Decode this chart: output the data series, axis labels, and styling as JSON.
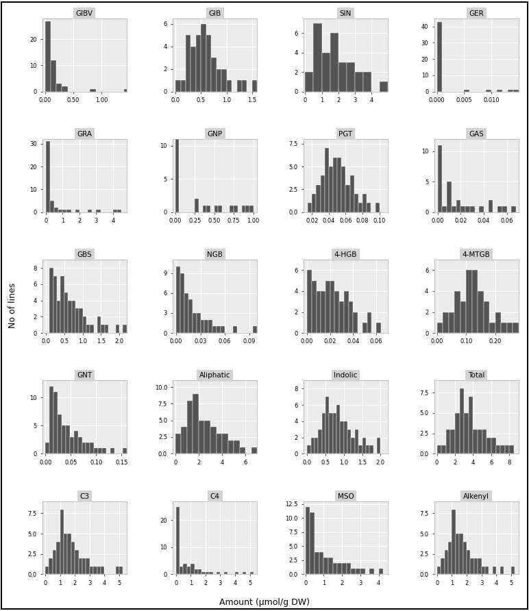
{
  "panels": [
    {
      "title": "GIBV",
      "xlim": [
        -0.05,
        1.45
      ],
      "ylim": [
        0,
        28
      ],
      "xticks": [
        0.0,
        0.5,
        1.0
      ],
      "yticks": [
        0,
        10,
        20
      ],
      "bins": [
        0.0,
        0.1,
        0.2,
        0.3,
        0.4,
        0.5,
        0.6,
        0.7,
        0.8,
        0.9,
        1.0,
        1.1,
        1.2,
        1.3,
        1.4,
        1.5
      ],
      "counts": [
        27,
        12,
        3,
        2,
        0,
        0,
        0,
        0,
        1,
        0,
        0,
        0,
        0,
        0,
        1
      ]
    },
    {
      "title": "GIB",
      "xlim": [
        -0.05,
        1.6
      ],
      "ylim": [
        0,
        6.5
      ],
      "xticks": [
        0.0,
        0.5,
        1.0,
        1.5
      ],
      "yticks": [
        0,
        2,
        4,
        6
      ],
      "bins": [
        0.0,
        0.1,
        0.2,
        0.3,
        0.4,
        0.5,
        0.6,
        0.7,
        0.8,
        0.9,
        1.0,
        1.1,
        1.2,
        1.3,
        1.4,
        1.5,
        1.6
      ],
      "counts": [
        1,
        1,
        5,
        4,
        5,
        6,
        5,
        3,
        2,
        2,
        1,
        0,
        1,
        1,
        0,
        1
      ]
    },
    {
      "title": "SIN",
      "xlim": [
        -0.1,
        5.0
      ],
      "ylim": [
        0,
        7.5
      ],
      "xticks": [
        0,
        1,
        2,
        3,
        4
      ],
      "yticks": [
        0,
        2,
        4,
        6
      ],
      "bins": [
        0.0,
        0.5,
        1.0,
        1.5,
        2.0,
        2.5,
        3.0,
        3.5,
        4.0,
        4.5,
        5.0
      ],
      "counts": [
        2,
        7,
        4,
        6,
        3,
        3,
        2,
        2,
        0,
        1
      ]
    },
    {
      "title": "GER",
      "xlim": [
        -0.0005,
        0.015
      ],
      "ylim": [
        0,
        45
      ],
      "xticks": [
        0.0,
        0.005,
        0.01
      ],
      "yticks": [
        0,
        10,
        20,
        30,
        40
      ],
      "bins": [
        0.0,
        0.001,
        0.002,
        0.003,
        0.004,
        0.005,
        0.006,
        0.007,
        0.008,
        0.009,
        0.01,
        0.011,
        0.012,
        0.013,
        0.014,
        0.015
      ],
      "counts": [
        43,
        0,
        0,
        0,
        0,
        1,
        0,
        0,
        0,
        1,
        0,
        1,
        0,
        1,
        1
      ]
    },
    {
      "title": "GRA",
      "xlim": [
        -0.2,
        4.8
      ],
      "ylim": [
        0,
        32
      ],
      "xticks": [
        0,
        1,
        2,
        3,
        4
      ],
      "yticks": [
        0,
        10,
        20,
        30
      ],
      "bins": [
        0.0,
        0.25,
        0.5,
        0.75,
        1.0,
        1.25,
        1.5,
        1.75,
        2.0,
        2.25,
        2.5,
        2.75,
        3.0,
        3.25,
        3.5,
        3.75,
        4.0,
        4.25,
        4.5
      ],
      "counts": [
        31,
        5,
        2,
        1,
        1,
        1,
        0,
        1,
        0,
        0,
        1,
        0,
        1,
        0,
        0,
        0,
        1,
        1
      ]
    },
    {
      "title": "GNP",
      "xlim": [
        -0.03,
        1.05
      ],
      "ylim": [
        0,
        11
      ],
      "xticks": [
        0.0,
        0.25,
        0.5,
        0.75,
        1.0
      ],
      "yticks": [
        0,
        5,
        10
      ],
      "bins": [
        0.0,
        0.05,
        0.1,
        0.15,
        0.2,
        0.25,
        0.3,
        0.35,
        0.4,
        0.45,
        0.5,
        0.55,
        0.6,
        0.65,
        0.7,
        0.75,
        0.8,
        0.85,
        0.9,
        0.95,
        1.0
      ],
      "counts": [
        11,
        0,
        0,
        0,
        0,
        2,
        0,
        1,
        1,
        0,
        1,
        1,
        0,
        0,
        1,
        1,
        0,
        1,
        1,
        1
      ]
    },
    {
      "title": "PGT",
      "xlim": [
        0.01,
        0.11
      ],
      "ylim": [
        0,
        8
      ],
      "xticks": [
        0.02,
        0.04,
        0.06,
        0.08,
        0.1
      ],
      "yticks": [
        0.0,
        2.5,
        5.0,
        7.5
      ],
      "bins": [
        0.01,
        0.015,
        0.02,
        0.025,
        0.03,
        0.035,
        0.04,
        0.045,
        0.05,
        0.055,
        0.06,
        0.065,
        0.07,
        0.075,
        0.08,
        0.085,
        0.09,
        0.095,
        0.1
      ],
      "counts": [
        0,
        1,
        2,
        3,
        4,
        7,
        5,
        6,
        6,
        5,
        3,
        4,
        2,
        1,
        2,
        1,
        0,
        1
      ]
    },
    {
      "title": "GAS",
      "xlim": [
        -0.003,
        0.07
      ],
      "ylim": [
        0,
        12
      ],
      "xticks": [
        0.0,
        0.02,
        0.04,
        0.06
      ],
      "yticks": [
        0,
        5,
        10
      ],
      "bins": [
        0.0,
        0.004,
        0.008,
        0.012,
        0.016,
        0.02,
        0.024,
        0.028,
        0.032,
        0.036,
        0.04,
        0.044,
        0.048,
        0.052,
        0.056,
        0.06,
        0.064,
        0.068
      ],
      "counts": [
        11,
        1,
        5,
        1,
        2,
        1,
        1,
        1,
        0,
        1,
        0,
        2,
        0,
        1,
        1,
        0,
        1
      ]
    },
    {
      "title": "GBS",
      "xlim": [
        -0.1,
        2.2
      ],
      "ylim": [
        0,
        9
      ],
      "xticks": [
        0.0,
        0.5,
        1.0,
        1.5,
        2.0
      ],
      "yticks": [
        0,
        2,
        4,
        6,
        8
      ],
      "bins": [
        0.0,
        0.1,
        0.2,
        0.3,
        0.4,
        0.5,
        0.6,
        0.7,
        0.8,
        0.9,
        1.0,
        1.1,
        1.2,
        1.3,
        1.4,
        1.5,
        1.6,
        1.7,
        1.8,
        1.9,
        2.0,
        2.1,
        2.2
      ],
      "counts": [
        0,
        8,
        7,
        4,
        7,
        5,
        4,
        4,
        3,
        3,
        2,
        1,
        1,
        0,
        2,
        1,
        1,
        0,
        0,
        1,
        0,
        1
      ]
    },
    {
      "title": "NGB",
      "xlim": [
        -0.004,
        0.1
      ],
      "ylim": [
        0,
        11
      ],
      "xticks": [
        0.0,
        0.03,
        0.06,
        0.09
      ],
      "yticks": [
        0,
        3,
        6,
        9
      ],
      "bins": [
        0.0,
        0.005,
        0.01,
        0.015,
        0.02,
        0.025,
        0.03,
        0.035,
        0.04,
        0.045,
        0.05,
        0.055,
        0.06,
        0.065,
        0.07,
        0.075,
        0.08,
        0.085,
        0.09,
        0.095,
        0.1
      ],
      "counts": [
        10,
        9,
        6,
        5,
        3,
        3,
        2,
        2,
        2,
        1,
        1,
        1,
        0,
        0,
        1,
        0,
        0,
        0,
        0,
        1
      ]
    },
    {
      "title": "4-HGB",
      "xlim": [
        -0.003,
        0.07
      ],
      "ylim": [
        0,
        7
      ],
      "xticks": [
        0.0,
        0.02,
        0.04,
        0.06
      ],
      "yticks": [
        0,
        2,
        4,
        6
      ],
      "bins": [
        0.0,
        0.004,
        0.008,
        0.012,
        0.016,
        0.02,
        0.024,
        0.028,
        0.032,
        0.036,
        0.04,
        0.044,
        0.048,
        0.052,
        0.056,
        0.06,
        0.064
      ],
      "counts": [
        6,
        5,
        4,
        4,
        5,
        5,
        4,
        3,
        4,
        3,
        2,
        0,
        1,
        2,
        0,
        1
      ]
    },
    {
      "title": "4-MTGB",
      "xlim": [
        -0.01,
        0.28
      ],
      "ylim": [
        0,
        7
      ],
      "xticks": [
        0.0,
        0.1,
        0.2
      ],
      "yticks": [
        0,
        2,
        4,
        6
      ],
      "bins": [
        0.0,
        0.02,
        0.04,
        0.06,
        0.08,
        0.1,
        0.12,
        0.14,
        0.16,
        0.18,
        0.2,
        0.22,
        0.24,
        0.26,
        0.28
      ],
      "counts": [
        1,
        2,
        2,
        4,
        3,
        6,
        6,
        4,
        3,
        1,
        2,
        1,
        1,
        1
      ]
    },
    {
      "title": "GNT",
      "xlim": [
        -0.006,
        0.16
      ],
      "ylim": [
        0,
        13
      ],
      "xticks": [
        0.0,
        0.05,
        0.1,
        0.15
      ],
      "yticks": [
        0,
        5,
        10
      ],
      "bins": [
        0.0,
        0.008,
        0.016,
        0.024,
        0.032,
        0.04,
        0.048,
        0.056,
        0.064,
        0.072,
        0.08,
        0.088,
        0.096,
        0.104,
        0.112,
        0.12,
        0.128,
        0.136,
        0.144,
        0.152,
        0.16
      ],
      "counts": [
        2,
        12,
        11,
        7,
        5,
        5,
        3,
        4,
        3,
        2,
        2,
        2,
        1,
        1,
        1,
        0,
        1,
        0,
        0,
        1
      ]
    },
    {
      "title": "Aliphatic",
      "xlim": [
        -0.2,
        7.0
      ],
      "ylim": [
        0,
        11
      ],
      "xticks": [
        0,
        2,
        4,
        6
      ],
      "yticks": [
        0.0,
        2.5,
        5.0,
        7.5,
        10.0
      ],
      "bins": [
        0.0,
        0.5,
        1.0,
        1.5,
        2.0,
        2.5,
        3.0,
        3.5,
        4.0,
        4.5,
        5.0,
        5.5,
        6.0,
        6.5,
        7.0
      ],
      "counts": [
        3,
        4,
        8,
        9,
        5,
        5,
        4,
        3,
        3,
        2,
        2,
        1,
        0,
        1
      ]
    },
    {
      "title": "Indolic",
      "xlim": [
        -0.1,
        2.2
      ],
      "ylim": [
        0,
        9
      ],
      "xticks": [
        0.0,
        0.5,
        1.0,
        1.5,
        2.0
      ],
      "yticks": [
        0,
        2,
        4,
        6,
        8
      ],
      "bins": [
        0.0,
        0.1,
        0.2,
        0.3,
        0.4,
        0.5,
        0.6,
        0.7,
        0.8,
        0.9,
        1.0,
        1.1,
        1.2,
        1.3,
        1.4,
        1.5,
        1.6,
        1.7,
        1.8,
        1.9,
        2.0,
        2.1
      ],
      "counts": [
        1,
        2,
        2,
        3,
        5,
        7,
        5,
        5,
        6,
        4,
        4,
        3,
        2,
        3,
        1,
        2,
        1,
        1,
        0,
        2,
        0
      ]
    },
    {
      "title": "Total",
      "xlim": [
        -0.3,
        9.0
      ],
      "ylim": [
        0,
        9
      ],
      "xticks": [
        0,
        2,
        4,
        6,
        8
      ],
      "yticks": [
        0.0,
        2.5,
        5.0,
        7.5
      ],
      "bins": [
        0.0,
        0.5,
        1.0,
        1.5,
        2.0,
        2.5,
        3.0,
        3.5,
        4.0,
        4.5,
        5.0,
        5.5,
        6.0,
        6.5,
        7.0,
        7.5,
        8.0,
        8.5
      ],
      "counts": [
        1,
        1,
        3,
        3,
        5,
        8,
        5,
        7,
        3,
        3,
        3,
        2,
        2,
        1,
        1,
        1,
        1
      ]
    },
    {
      "title": "C3",
      "xlim": [
        -0.2,
        5.5
      ],
      "ylim": [
        0,
        9
      ],
      "xticks": [
        0,
        1,
        2,
        3,
        4,
        5
      ],
      "yticks": [
        0.0,
        2.5,
        5.0,
        7.5
      ],
      "bins": [
        0.0,
        0.25,
        0.5,
        0.75,
        1.0,
        1.25,
        1.5,
        1.75,
        2.0,
        2.25,
        2.5,
        2.75,
        3.0,
        3.25,
        3.5,
        3.75,
        4.0,
        4.25,
        4.5,
        4.75,
        5.0,
        5.25
      ],
      "counts": [
        1,
        2,
        3,
        4,
        8,
        5,
        5,
        4,
        3,
        2,
        2,
        2,
        1,
        1,
        1,
        1,
        0,
        0,
        0,
        1,
        1
      ]
    },
    {
      "title": "C4",
      "xlim": [
        -0.2,
        5.5
      ],
      "ylim": [
        0,
        27
      ],
      "xticks": [
        0,
        1,
        2,
        3,
        4,
        5
      ],
      "yticks": [
        0,
        10,
        20
      ],
      "bins": [
        0.0,
        0.25,
        0.5,
        0.75,
        1.0,
        1.25,
        1.5,
        1.75,
        2.0,
        2.25,
        2.5,
        2.75,
        3.0,
        3.25,
        3.5,
        3.75,
        4.0,
        4.25,
        4.5,
        4.75,
        5.0,
        5.25
      ],
      "counts": [
        25,
        3,
        4,
        3,
        4,
        2,
        2,
        1,
        1,
        1,
        0,
        1,
        0,
        1,
        0,
        0,
        1,
        0,
        1,
        0,
        1
      ]
    },
    {
      "title": "MSO",
      "xlim": [
        -0.1,
        4.5
      ],
      "ylim": [
        0,
        13
      ],
      "xticks": [
        0,
        1,
        2,
        3,
        4
      ],
      "yticks": [
        0.0,
        2.5,
        5.0,
        7.5,
        10.0,
        12.5
      ],
      "bins": [
        0.0,
        0.25,
        0.5,
        0.75,
        1.0,
        1.25,
        1.5,
        1.75,
        2.0,
        2.25,
        2.5,
        2.75,
        3.0,
        3.25,
        3.5,
        3.75,
        4.0,
        4.25
      ],
      "counts": [
        12,
        11,
        4,
        4,
        3,
        3,
        2,
        2,
        2,
        2,
        1,
        1,
        1,
        0,
        1,
        0,
        1
      ]
    },
    {
      "title": "Alkenyl",
      "xlim": [
        -0.2,
        5.5
      ],
      "ylim": [
        0,
        9
      ],
      "xticks": [
        0,
        1,
        2,
        3,
        4,
        5
      ],
      "yticks": [
        0.0,
        2.5,
        5.0,
        7.5
      ],
      "bins": [
        0.0,
        0.25,
        0.5,
        0.75,
        1.0,
        1.25,
        1.5,
        1.75,
        2.0,
        2.25,
        2.5,
        2.75,
        3.0,
        3.25,
        3.5,
        3.75,
        4.0,
        4.25,
        4.5,
        4.75,
        5.0,
        5.25
      ],
      "counts": [
        1,
        2,
        3,
        4,
        8,
        5,
        5,
        4,
        3,
        2,
        2,
        2,
        1,
        1,
        0,
        1,
        0,
        1,
        0,
        0,
        1
      ]
    }
  ],
  "bar_color": "#555555",
  "panel_bg": "#ebebeb",
  "fig_bg": "#ffffff",
  "ylabel": "No of lines",
  "xlabel": "Amount (μmol/g DW)",
  "grid_color": "#ffffff",
  "title_bg": "#d3d3d3",
  "nrows": 5,
  "ncols": 4
}
